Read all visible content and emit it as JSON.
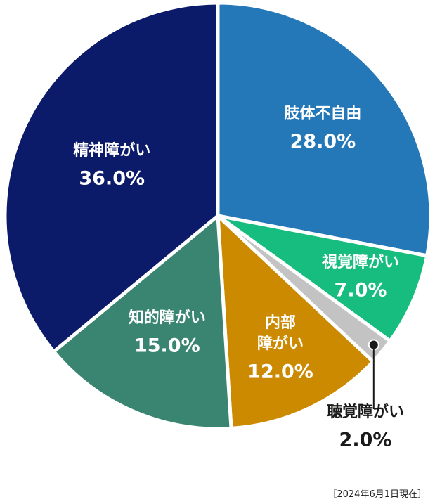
{
  "chart_data": {
    "type": "pie",
    "start_angle_deg": 0,
    "direction": "clockwise",
    "slices": [
      {
        "label": "肢体不自由",
        "label_lines": [
          "肢体不自由"
        ],
        "value": 28.0,
        "value_text": "28.0%",
        "color": "#2478b8",
        "label_color": "#ffffff",
        "label_inside": true
      },
      {
        "label": "視覚障がい",
        "label_lines": [
          "視覚障がい"
        ],
        "value": 7.0,
        "value_text": "7.0%",
        "color": "#17bd7f",
        "label_color": "#ffffff",
        "label_inside": true
      },
      {
        "label": "聴覚障がい",
        "label_lines": [
          "聴覚障がい"
        ],
        "value": 2.0,
        "value_text": "2.0%",
        "color": "#c3c3c3",
        "label_color": "#1a1a1a",
        "label_inside": false
      },
      {
        "label": "内部障がい",
        "label_lines": [
          "内部",
          "障がい"
        ],
        "value": 12.0,
        "value_text": "12.0%",
        "color": "#cc8a00",
        "label_color": "#ffffff",
        "label_inside": true
      },
      {
        "label": "知的障がい",
        "label_lines": [
          "知的障がい"
        ],
        "value": 15.0,
        "value_text": "15.0%",
        "color": "#3a8571",
        "label_color": "#ffffff",
        "label_inside": true
      },
      {
        "label": "精神障がい",
        "label_lines": [
          "精神障がい"
        ],
        "value": 36.0,
        "value_text": "36.0%",
        "color": "#0b1a69",
        "label_color": "#ffffff",
        "label_inside": true
      }
    ]
  },
  "note": "［2024年6月1日現在］"
}
